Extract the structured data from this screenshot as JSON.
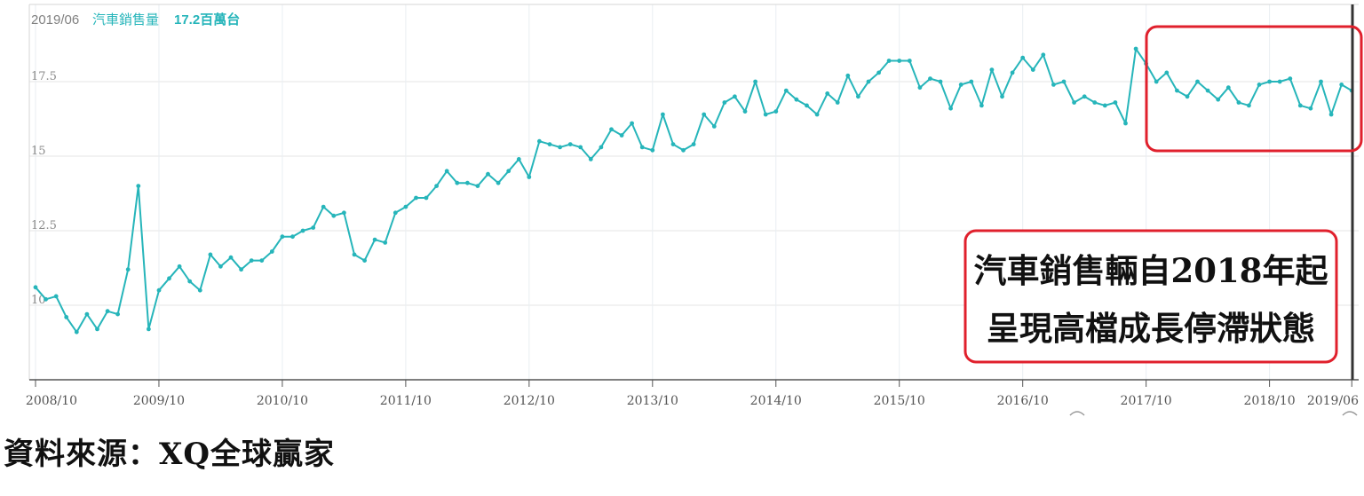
{
  "header": {
    "date": "2019/06",
    "series_label": "汽車銷售量",
    "value_label": "17.2百萬台"
  },
  "annotation": {
    "line1": "汽車銷售輛自2018年起",
    "line2": "呈現高檔成長停滯狀態"
  },
  "source": "資料來源：XQ全球贏家",
  "colors": {
    "line": "#26b5ba",
    "highlight_box": "#e0202c",
    "grid": "#e6e6e6",
    "cursor": "#333333"
  },
  "chart_data": {
    "type": "line",
    "x_start": "2008/10",
    "x_step": "month",
    "x_ticks": [
      "2008/10",
      "2009/10",
      "2010/10",
      "2011/10",
      "2012/10",
      "2013/10",
      "2014/10",
      "2015/10",
      "2016/10",
      "2017/10",
      "2018/10",
      "2019/06"
    ],
    "y_ticks": [
      "10",
      "12.5",
      "15",
      "17.5"
    ],
    "ylim": [
      7.5,
      20
    ],
    "grid": true,
    "highlight_range": [
      "2017/11",
      "2019/06"
    ],
    "series": [
      {
        "values": [
          10.6,
          10.2,
          10.3,
          9.6,
          9.1,
          9.7,
          9.2,
          9.8,
          9.7,
          11.2,
          14.0,
          9.2,
          10.5,
          10.9,
          11.3,
          10.8,
          10.5,
          11.7,
          11.3,
          11.6,
          11.2,
          11.5,
          11.5,
          11.8,
          12.3,
          12.3,
          12.5,
          12.6,
          13.3,
          13.0,
          13.1,
          11.7,
          11.5,
          12.2,
          12.1,
          13.1,
          13.3,
          13.6,
          13.6,
          14.0,
          14.5,
          14.1,
          14.1,
          14.0,
          14.4,
          14.1,
          14.5,
          14.9,
          14.3,
          15.5,
          15.4,
          15.3,
          15.4,
          15.3,
          14.9,
          15.3,
          15.9,
          15.7,
          16.1,
          15.3,
          15.2,
          16.4,
          15.4,
          15.2,
          15.4,
          16.4,
          16.0,
          16.8,
          17.0,
          16.5,
          17.5,
          16.4,
          16.5,
          17.2,
          16.9,
          16.7,
          16.4,
          17.1,
          16.8,
          17.7,
          17.0,
          17.5,
          17.8,
          18.2,
          18.2,
          18.2,
          17.3,
          17.6,
          17.5,
          16.6,
          17.4,
          17.5,
          16.7,
          17.9,
          17.0,
          17.8,
          18.3,
          17.9,
          18.4,
          17.4,
          17.5,
          16.8,
          17.0,
          16.8,
          16.7,
          16.8,
          16.1,
          18.6,
          18.1,
          17.5,
          17.8,
          17.2,
          17.0,
          17.5,
          17.2,
          16.9,
          17.3,
          16.8,
          16.7,
          17.4,
          17.5,
          17.5,
          17.6,
          16.7,
          16.6,
          17.5,
          16.4,
          17.4,
          17.2
        ]
      }
    ]
  }
}
